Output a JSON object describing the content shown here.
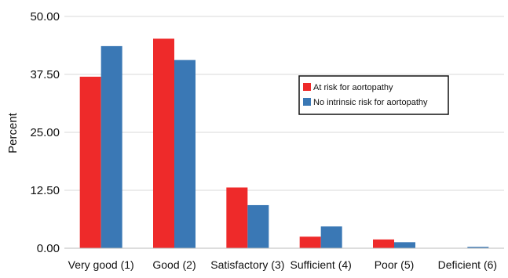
{
  "chart_data": {
    "type": "bar",
    "ylabel": "Percent",
    "xlabel": "",
    "ylim": [
      0,
      50
    ],
    "yticks": [
      "0.00",
      "12.50",
      "25.00",
      "37.50",
      "50.00"
    ],
    "grid": true,
    "legend_position": "right",
    "categories": [
      "Very good (1)",
      "Good (2)",
      "Satisfactory (3)",
      "Sufficient (4)",
      "Poor (5)",
      "Deficient (6)"
    ],
    "series": [
      {
        "name": "At risk for aortopathy",
        "color": "#ee2a2a",
        "values": [
          37.0,
          45.2,
          13.1,
          2.5,
          1.9,
          0.0
        ]
      },
      {
        "name": "No intrinsic risk for aortopathy",
        "color": "#3a78b5",
        "values": [
          43.6,
          40.6,
          9.3,
          4.7,
          1.3,
          0.3
        ]
      }
    ]
  }
}
